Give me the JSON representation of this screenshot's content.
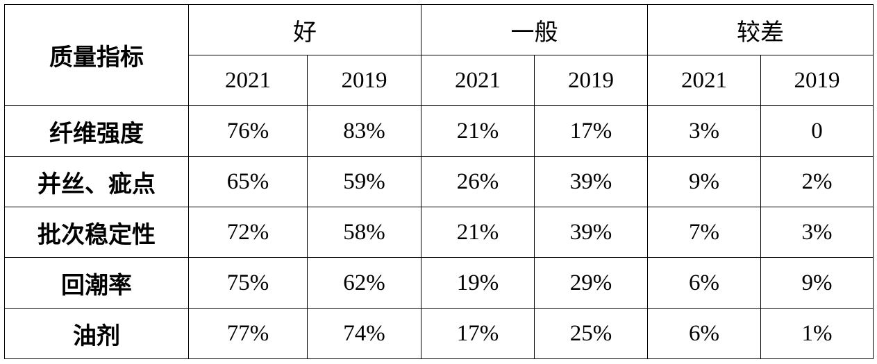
{
  "table": {
    "corner_label": "质量指标",
    "groups": [
      "好",
      "一般",
      "较差"
    ],
    "years": [
      "2021",
      "2019",
      "2021",
      "2019",
      "2021",
      "2019"
    ],
    "rows": [
      {
        "label": "纤维强度",
        "values": [
          "76%",
          "83%",
          "21%",
          "17%",
          "3%",
          "0"
        ]
      },
      {
        "label": "并丝、疵点",
        "values": [
          "65%",
          "59%",
          "26%",
          "39%",
          "9%",
          "2%"
        ]
      },
      {
        "label": "批次稳定性",
        "values": [
          "72%",
          "58%",
          "21%",
          "39%",
          "7%",
          "3%"
        ]
      },
      {
        "label": "回潮率",
        "values": [
          "75%",
          "62%",
          "19%",
          "29%",
          "6%",
          "9%"
        ]
      },
      {
        "label": "油剂",
        "values": [
          "77%",
          "74%",
          "17%",
          "25%",
          "6%",
          "1%"
        ]
      }
    ]
  }
}
